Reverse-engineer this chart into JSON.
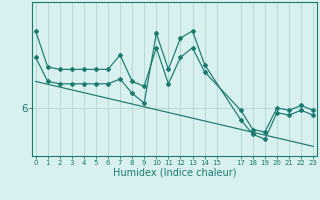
{
  "title": "",
  "xlabel": "Humidex (Indice chaleur)",
  "x_ticks": [
    0,
    1,
    2,
    3,
    4,
    5,
    6,
    7,
    8,
    9,
    10,
    11,
    12,
    13,
    14,
    15,
    17,
    18,
    19,
    20,
    21,
    22,
    23
  ],
  "line_color": "#1a7a6e",
  "bg_color": "#d8f0f0",
  "plot_bg": "#d8f0f0",
  "grid_color": "#b8d8d8",
  "y_label_6": 6,
  "ylim": [
    5.0,
    8.2
  ],
  "xlim": [
    -0.3,
    23.3
  ],
  "series1": {
    "x": [
      0,
      1,
      2,
      3,
      4,
      5,
      6,
      7,
      8,
      9,
      10,
      11,
      12,
      13,
      14,
      17,
      18,
      19,
      20,
      21,
      22,
      23
    ],
    "y": [
      7.6,
      6.85,
      6.8,
      6.8,
      6.8,
      6.8,
      6.8,
      7.1,
      6.55,
      6.45,
      7.25,
      6.5,
      7.05,
      7.25,
      6.75,
      5.95,
      5.55,
      5.5,
      6.0,
      5.95,
      6.05,
      5.95
    ]
  },
  "series2": {
    "x": [
      0,
      23
    ],
    "y": [
      6.55,
      5.2
    ]
  },
  "series3": {
    "x": [
      0,
      1,
      2,
      3,
      4,
      5,
      6,
      7,
      8,
      9,
      10,
      11,
      12,
      13,
      14,
      17,
      18,
      19,
      20,
      21,
      22,
      23
    ],
    "y": [
      7.05,
      6.55,
      6.5,
      6.5,
      6.5,
      6.5,
      6.5,
      6.6,
      6.3,
      6.1,
      7.55,
      6.8,
      7.45,
      7.6,
      6.9,
      5.75,
      5.45,
      5.35,
      5.9,
      5.85,
      5.95,
      5.85
    ]
  }
}
